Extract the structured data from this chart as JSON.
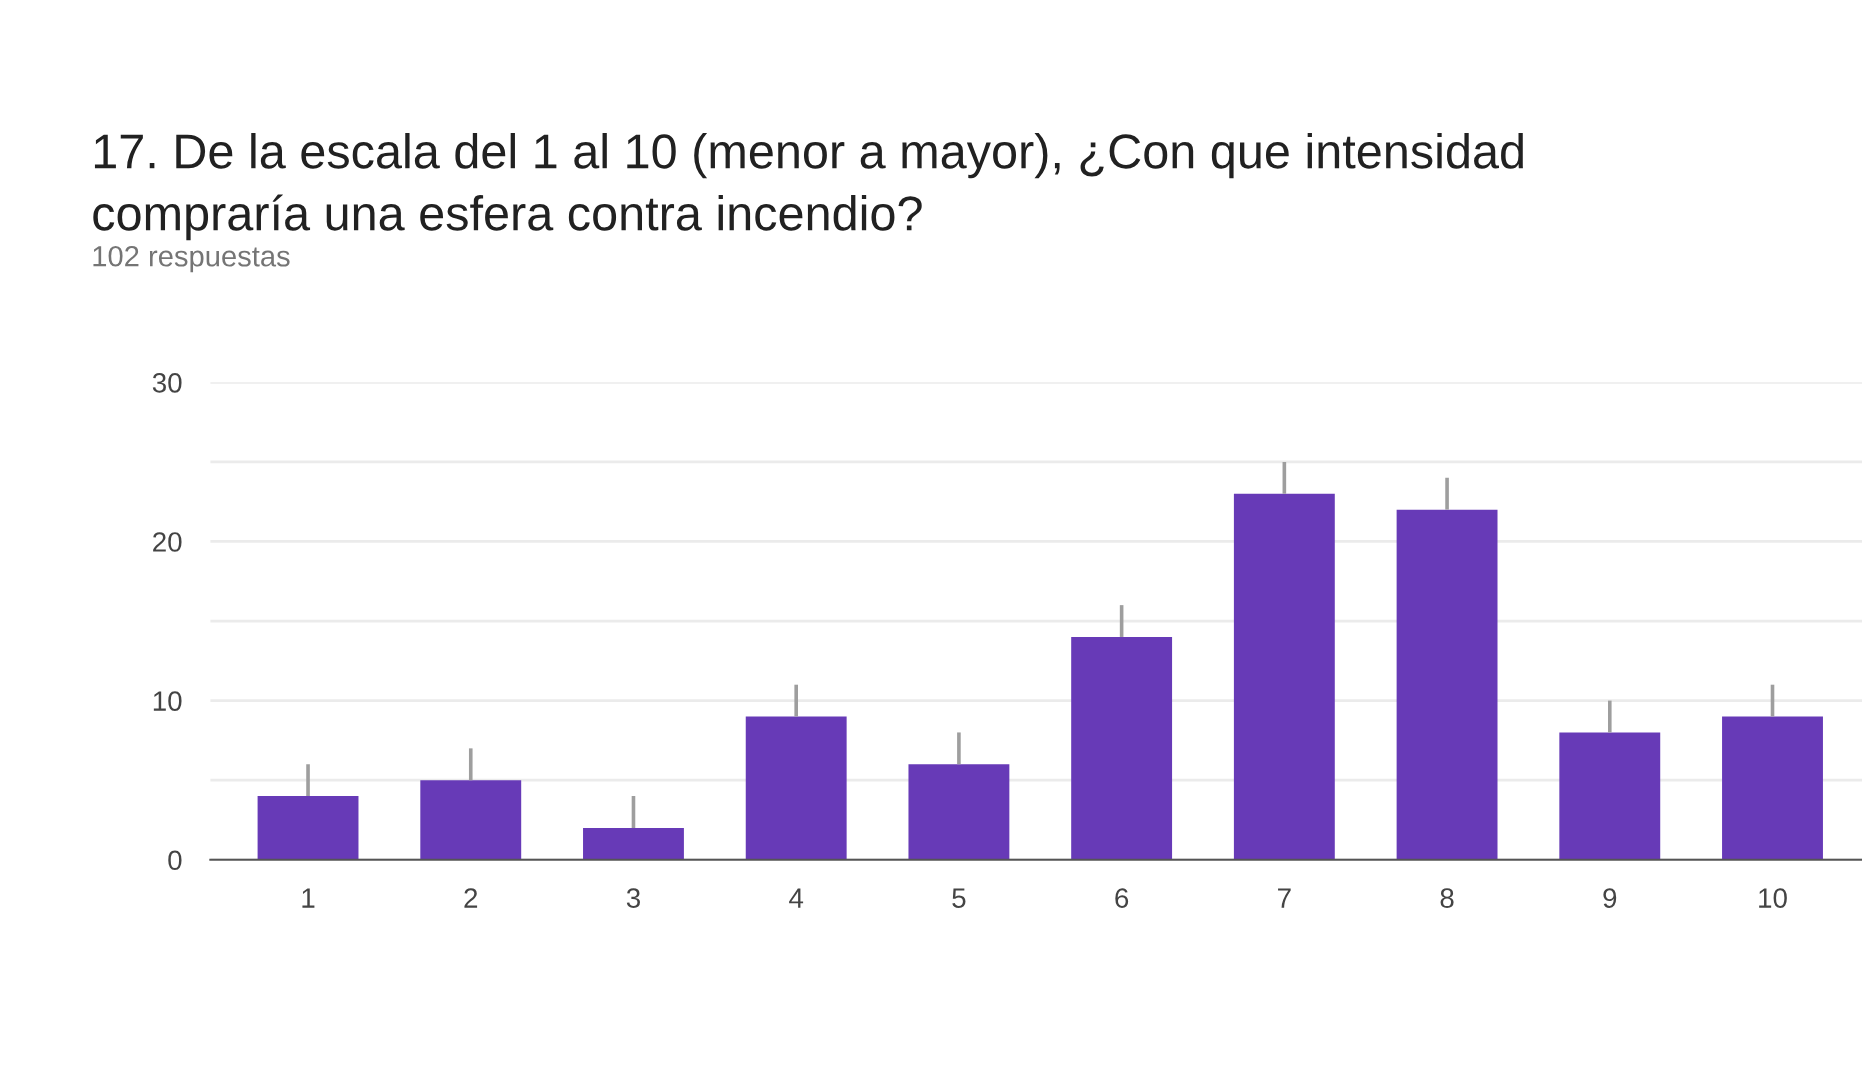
{
  "chart_data": {
    "type": "bar",
    "title": "17. De la escala del 1 al 10 (menor a mayor), ¿Con que intensidad\ncompraría una esfera contra incendio?",
    "subtitle": "102 respuestas",
    "categories": [
      "1",
      "2",
      "3",
      "4",
      "5",
      "6",
      "7",
      "8",
      "9",
      "10"
    ],
    "values": [
      4,
      5,
      2,
      9,
      6,
      14,
      23,
      22,
      8,
      9
    ],
    "errors": [
      [
        4,
        6
      ],
      [
        5,
        7
      ],
      [
        2,
        4
      ],
      [
        9,
        11
      ],
      [
        6,
        8
      ],
      [
        14,
        16
      ],
      [
        23,
        25
      ],
      [
        22,
        24
      ],
      [
        8,
        10
      ],
      [
        9,
        11
      ]
    ],
    "color": "#673ab7",
    "ylim": [
      0,
      30
    ],
    "yticks": [
      0,
      {
        "value": 5,
        "label": null
      },
      10,
      {
        "value": 15,
        "label": null
      },
      20,
      {
        "value": 25,
        "label": null
      },
      30
    ],
    "grid": "y",
    "legend": false
  }
}
